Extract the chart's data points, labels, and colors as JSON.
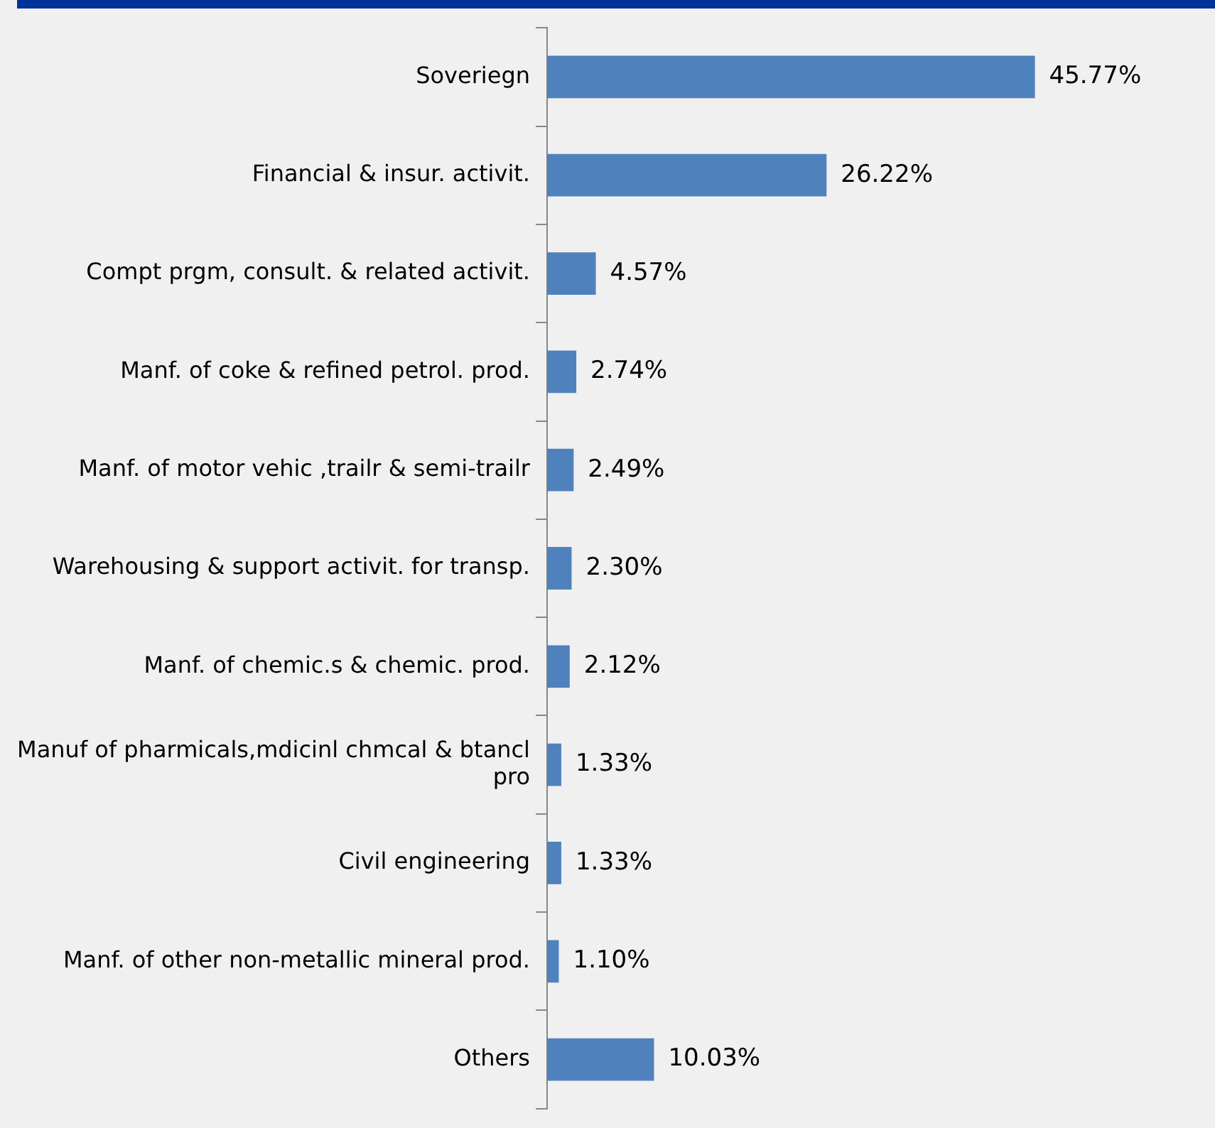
{
  "chart_data": {
    "type": "bar",
    "orientation": "horizontal",
    "categories": [
      "Soveriegn",
      "Financial & insur. activit.",
      "Compt prgm, consult. & related activit.",
      "Manf. of coke & refined petrol. prod.",
      "Manf. of motor vehic ,trailr & semi-trailr",
      "Warehousing & support activit. for transp.",
      "Manf. of chemic.s & chemic. prod.",
      "Manuf of pharmicals,mdicinl chmcal & btancl pro",
      "Civil engineering",
      "Manf. of other non-metallic mineral prod.",
      "Others"
    ],
    "values": [
      45.77,
      26.22,
      4.57,
      2.74,
      2.49,
      2.3,
      2.12,
      1.33,
      1.33,
      1.1,
      10.03
    ],
    "value_labels": [
      "45.77%",
      "26.22%",
      "4.57%",
      "2.74%",
      "2.49%",
      "2.30%",
      "2.12%",
      "1.33%",
      "1.33%",
      "1.10%",
      "10.03%"
    ],
    "color": "#4f81bd",
    "grid": false,
    "legend": false,
    "tick_labels": "y"
  }
}
